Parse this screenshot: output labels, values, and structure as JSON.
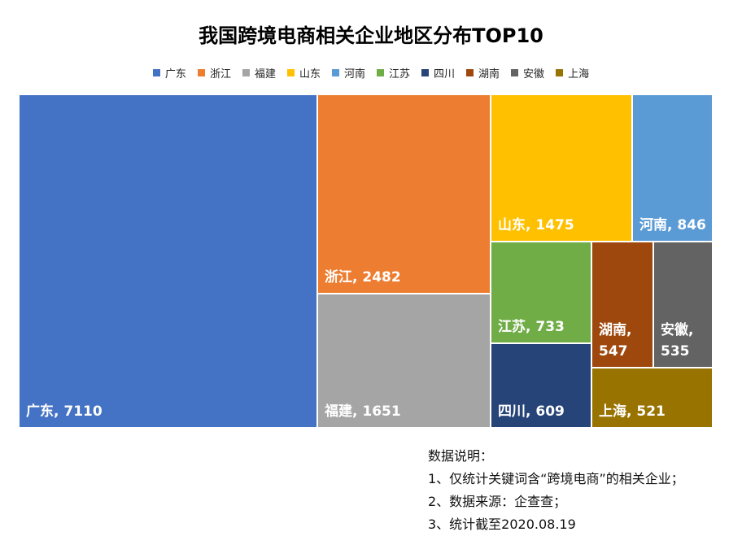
{
  "chart_data": {
    "type": "treemap",
    "title": "我国跨境电商相关企业地区分布TOP10",
    "legend_position": "top",
    "categories": [
      "广东",
      "浙江",
      "福建",
      "山东",
      "河南",
      "江苏",
      "四川",
      "湖南",
      "安徽",
      "上海"
    ],
    "values": [
      7110,
      2482,
      1651,
      1475,
      846,
      733,
      609,
      547,
      535,
      521
    ],
    "colors": [
      "#4472C4",
      "#ED7D31",
      "#A5A5A5",
      "#FFC000",
      "#5B9BD5",
      "#70AD47",
      "#264478",
      "#9E480E",
      "#636363",
      "#997300"
    ]
  },
  "notes": [
    "数据说明：",
    "1、仅统计关键词含“跨境电商”的相关企业；",
    "2、数据来源：企查查；",
    "3、统计截至2020.08.19"
  ]
}
